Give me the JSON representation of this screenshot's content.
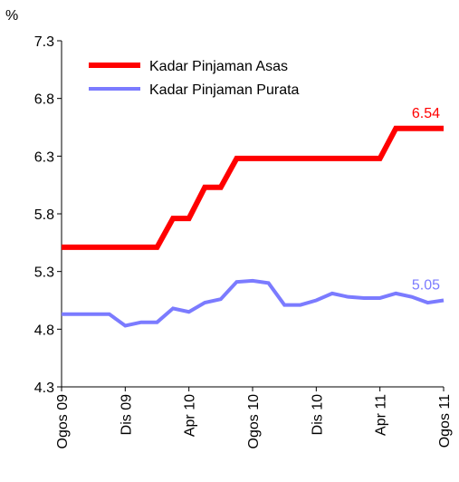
{
  "chart_data": {
    "type": "line",
    "y_label": "%",
    "categories": [
      "Ogos 09",
      null,
      null,
      null,
      "Dis 09",
      null,
      null,
      null,
      "Apr 10",
      null,
      null,
      null,
      "Ogos 10",
      null,
      null,
      null,
      "Dis 10",
      null,
      null,
      null,
      "Apr 11",
      null,
      null,
      null,
      "Ogos 11"
    ],
    "series": [
      {
        "name": "Kadar Pinjaman Asas",
        "color": "#ff0000",
        "values": [
          5.51,
          5.51,
          5.51,
          5.51,
          5.51,
          5.51,
          5.51,
          5.76,
          5.76,
          6.03,
          6.03,
          6.28,
          6.28,
          6.28,
          6.28,
          6.28,
          6.28,
          6.28,
          6.28,
          6.28,
          6.28,
          6.54,
          6.54,
          6.54,
          6.54
        ],
        "value_labels": [
          null,
          null,
          null,
          null,
          null,
          null,
          null,
          null,
          null,
          null,
          null,
          null,
          null,
          null,
          null,
          null,
          null,
          null,
          null,
          null,
          null,
          null,
          null,
          null,
          "6.54"
        ]
      },
      {
        "name": "Kadar Pinjaman Purata",
        "color": "#7b7bff",
        "values": [
          4.93,
          4.93,
          4.93,
          4.93,
          4.83,
          4.86,
          4.86,
          4.98,
          4.95,
          5.03,
          5.06,
          5.21,
          5.22,
          5.2,
          5.01,
          5.01,
          5.05,
          5.11,
          5.08,
          5.07,
          5.07,
          5.11,
          5.08,
          5.03,
          5.05
        ],
        "value_labels": [
          null,
          null,
          null,
          null,
          null,
          null,
          null,
          null,
          null,
          null,
          null,
          null,
          null,
          null,
          null,
          null,
          null,
          null,
          null,
          null,
          null,
          null,
          null,
          null,
          "5.05"
        ]
      }
    ],
    "ylim": [
      4.3,
      7.3
    ],
    "yticks": [
      4.3,
      4.8,
      5.3,
      5.8,
      6.3,
      6.8,
      7.3
    ]
  }
}
